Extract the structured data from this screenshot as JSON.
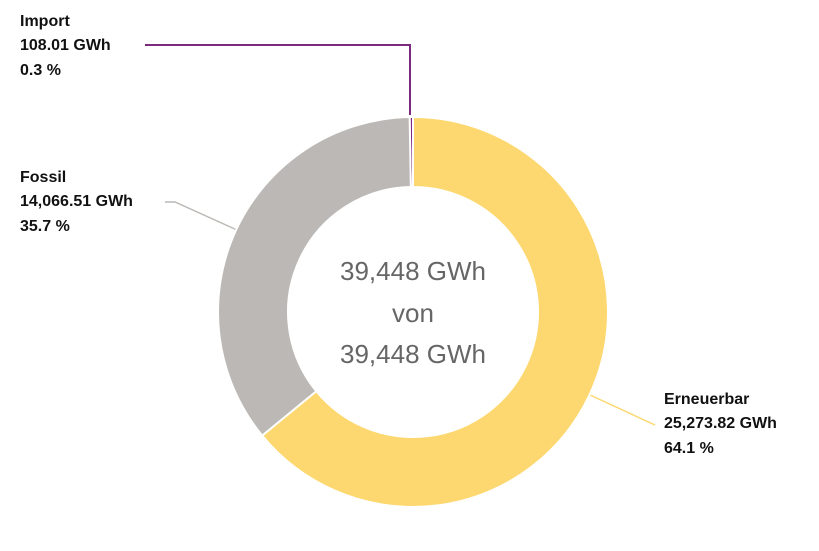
{
  "chart_data": {
    "type": "donut",
    "categories": [
      "Erneuerbar",
      "Fossil",
      "Import"
    ],
    "values": [
      25273.82,
      14066.51,
      108.01
    ],
    "value_labels": [
      "25,273.82 GWh",
      "14,066.51 GWh",
      "108.01 GWh"
    ],
    "percents": [
      64.1,
      35.7,
      0.3
    ],
    "percent_labels": [
      "64.1 %",
      "35.7 %",
      "0.3 %"
    ],
    "colors": [
      "#fdd870",
      "#bcb8b5",
      "#7b2a7e"
    ],
    "center_text": [
      "39,448 GWh",
      "von",
      "39,448 GWh"
    ]
  }
}
